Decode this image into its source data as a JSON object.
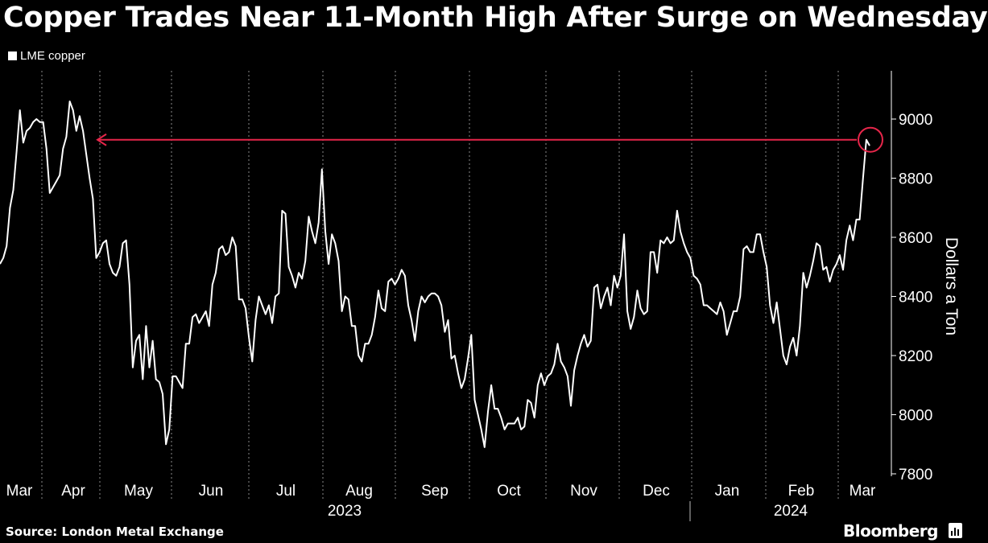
{
  "header": {
    "title": "Copper Trades Near 11-Month High After Surge on Wednesday"
  },
  "legend": {
    "label": "LME copper"
  },
  "footer": {
    "source": "Source: London Metal Exchange",
    "brand": "Bloomberg"
  },
  "colors": {
    "background": "#000000",
    "line": "#ffffff",
    "grid": "#8a8a8a",
    "annotation": "#e6264a"
  },
  "chart_data": {
    "type": "line",
    "title": "Copper Trades Near 11-Month High After Surge on Wednesday",
    "xlabel": "",
    "ylabel": "Dollars a Ton",
    "x_tick_labels": [
      "Mar",
      "Apr",
      "May",
      "Jun",
      "Jul",
      "Aug",
      "Sep",
      "Oct",
      "Nov",
      "Dec",
      "Jan",
      "Feb",
      "Mar"
    ],
    "year_labels": [
      "2023",
      "2024"
    ],
    "ylim": [
      7750,
      9170
    ],
    "y_ticks": [
      7800,
      8000,
      8200,
      8400,
      8600,
      8800,
      9000
    ],
    "grid": "vertical dotted",
    "legend_position": "top-left",
    "series": [
      {
        "name": "LME copper",
        "x_start": "2023-03-01",
        "x_end": "2024-03-06",
        "values": [
          8510,
          8530,
          8570,
          8700,
          8760,
          8890,
          9030,
          8920,
          8960,
          8970,
          8990,
          9000,
          8990,
          8990,
          8900,
          8750,
          8770,
          8790,
          8810,
          8900,
          8940,
          9060,
          9030,
          8960,
          9010,
          8960,
          8880,
          8800,
          8730,
          8530,
          8550,
          8580,
          8590,
          8510,
          8480,
          8470,
          8500,
          8580,
          8590,
          8440,
          8160,
          8250,
          8270,
          8120,
          8300,
          8160,
          8250,
          8120,
          8110,
          8070,
          7900,
          7950,
          8130,
          8130,
          8110,
          8090,
          8240,
          8240,
          8330,
          8340,
          8310,
          8330,
          8350,
          8300,
          8440,
          8480,
          8560,
          8570,
          8540,
          8550,
          8600,
          8570,
          8390,
          8390,
          8360,
          8260,
          8180,
          8320,
          8400,
          8370,
          8340,
          8370,
          8310,
          8400,
          8410,
          8690,
          8680,
          8500,
          8470,
          8430,
          8480,
          8460,
          8520,
          8670,
          8620,
          8580,
          8650,
          8830,
          8620,
          8510,
          8610,
          8580,
          8520,
          8350,
          8400,
          8390,
          8300,
          8300,
          8200,
          8180,
          8240,
          8240,
          8270,
          8330,
          8420,
          8360,
          8350,
          8450,
          8460,
          8440,
          8460,
          8490,
          8470,
          8370,
          8320,
          8250,
          8350,
          8400,
          8380,
          8400,
          8410,
          8410,
          8400,
          8370,
          8280,
          8320,
          8190,
          8200,
          8140,
          8090,
          8120,
          8190,
          8270,
          8050,
          8000,
          7950,
          7890,
          8010,
          8100,
          8020,
          8020,
          7990,
          7950,
          7970,
          7970,
          7970,
          7990,
          7950,
          7960,
          8050,
          8040,
          7990,
          8100,
          8140,
          8100,
          8130,
          8140,
          8170,
          8240,
          8180,
          8160,
          8130,
          8030,
          8150,
          8200,
          8240,
          8270,
          8230,
          8250,
          8430,
          8440,
          8360,
          8400,
          8430,
          8370,
          8470,
          8430,
          8470,
          8610,
          8350,
          8290,
          8330,
          8420,
          8360,
          8340,
          8350,
          8550,
          8550,
          8480,
          8590,
          8580,
          8600,
          8580,
          8590,
          8690,
          8620,
          8580,
          8550,
          8530,
          8470,
          8460,
          8440,
          8370,
          8370,
          8360,
          8350,
          8340,
          8380,
          8350,
          8270,
          8310,
          8350,
          8350,
          8400,
          8560,
          8570,
          8550,
          8550,
          8610,
          8610,
          8550,
          8500,
          8370,
          8310,
          8380,
          8290,
          8200,
          8170,
          8230,
          8260,
          8200,
          8300,
          8480,
          8430,
          8470,
          8520,
          8580,
          8570,
          8490,
          8500,
          8450,
          8490,
          8510,
          8540,
          8490,
          8590,
          8640,
          8590,
          8660,
          8660,
          8800,
          8930,
          8910
        ]
      }
    ],
    "annotation": {
      "type": "horizontal-arrow",
      "value": 8930,
      "direction": "left"
    }
  }
}
